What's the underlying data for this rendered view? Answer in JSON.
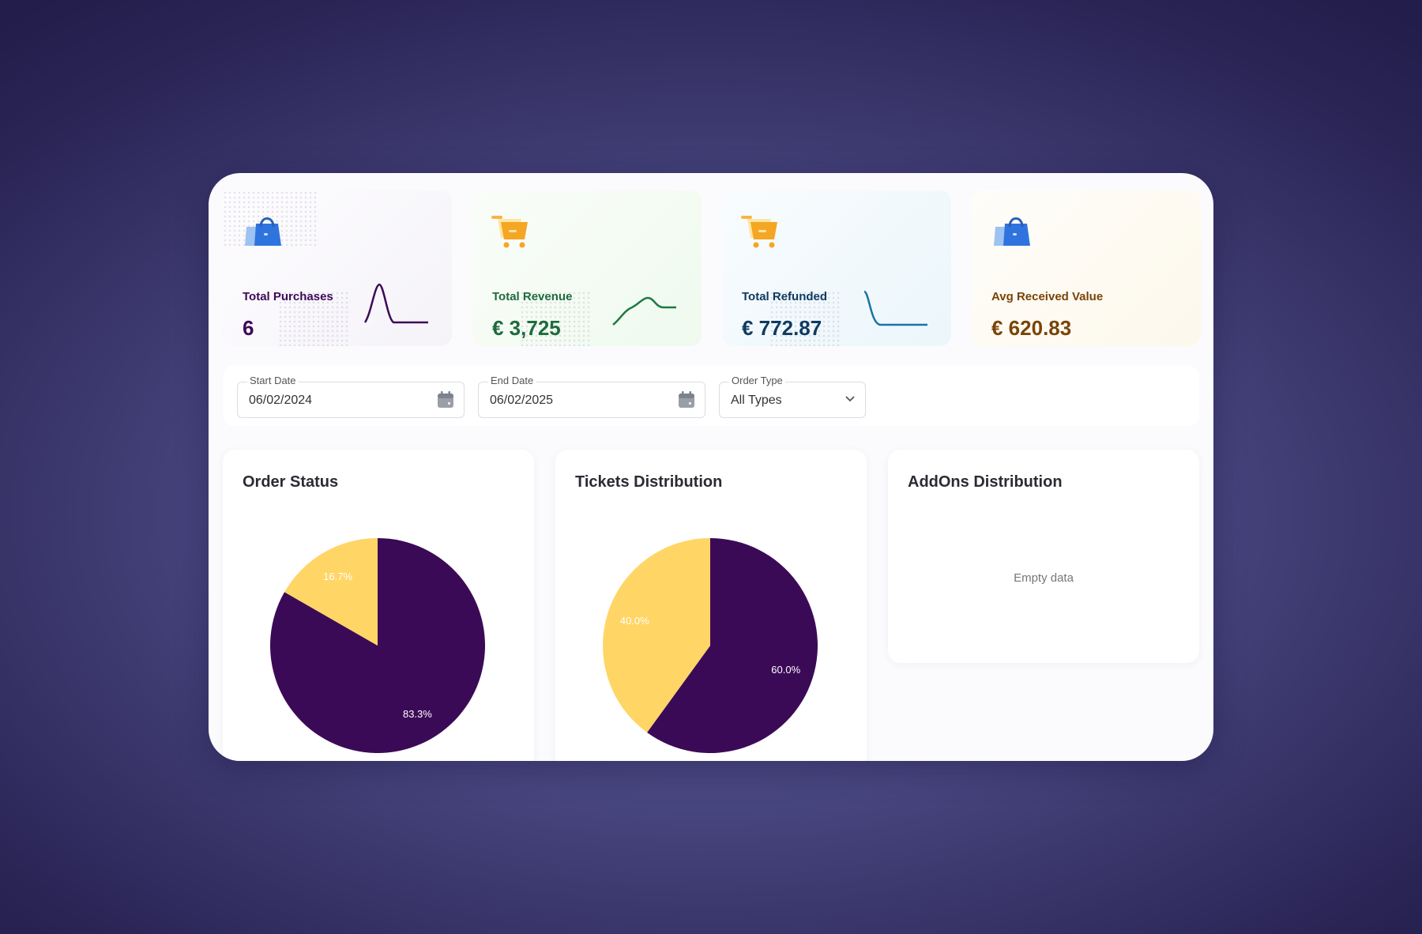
{
  "stats": [
    {
      "title": "Total Purchases",
      "value": "6",
      "icon": "shopping-bag-icon",
      "color": "#3b0a57"
    },
    {
      "title": "Total Revenue",
      "value": "€ 3,725",
      "icon": "shopping-cart-icon",
      "color": "#1e6b3c"
    },
    {
      "title": "Total Refunded",
      "value": "€ 772.87",
      "icon": "shopping-cart-icon",
      "color": "#0f3a60"
    },
    {
      "title": "Avg Received Value",
      "value": "€ 620.83",
      "icon": "shopping-bag-icon",
      "color": "#7a4308"
    }
  ],
  "filters": {
    "start_date": {
      "label": "Start Date",
      "value": "06/02/2024"
    },
    "end_date": {
      "label": "End Date",
      "value": "06/02/2025"
    },
    "order_type": {
      "label": "Order Type",
      "value": "All Types"
    }
  },
  "panels": {
    "order_status": {
      "title": "Order Status"
    },
    "tickets": {
      "title": "Tickets Distribution"
    },
    "addons": {
      "title": "AddOns Distribution",
      "empty": "Empty data"
    }
  },
  "colors": {
    "primary": "#3b0a57",
    "accent": "#ffd566"
  },
  "chart_data": [
    {
      "type": "pie",
      "title": "Order Status",
      "slices": [
        {
          "label": "83.3%",
          "value": 83.3,
          "color": "#3b0a57"
        },
        {
          "label": "16.7%",
          "value": 16.7,
          "color": "#ffd566"
        }
      ]
    },
    {
      "type": "pie",
      "title": "Tickets Distribution",
      "slices": [
        {
          "label": "60.0%",
          "value": 60.0,
          "color": "#3b0a57"
        },
        {
          "label": "40.0%",
          "value": 40.0,
          "color": "#ffd566"
        }
      ]
    }
  ]
}
